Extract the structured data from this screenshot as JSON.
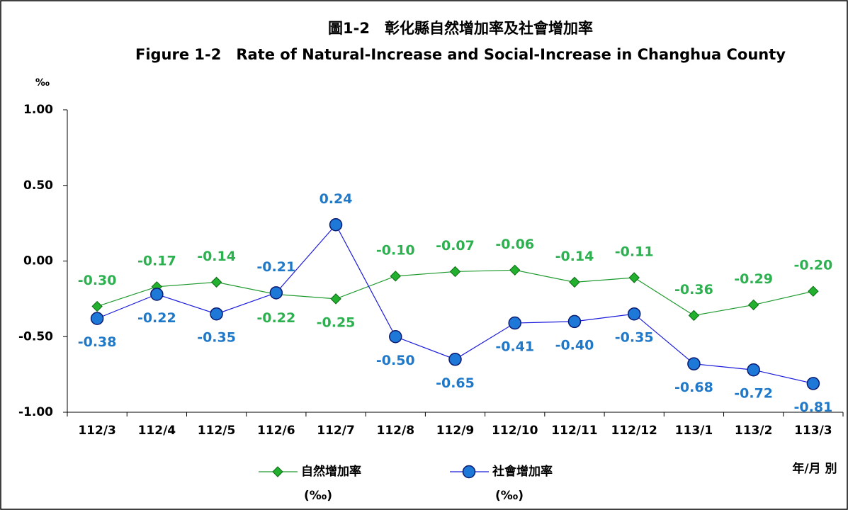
{
  "chart_data": {
    "type": "line",
    "title": "圖1-2　彰化縣自然增加率及社會增加率",
    "subtitle": "Figure 1-2　Rate of Natural-Increase and Social-Increase in Changhua County",
    "y_unit": "‰",
    "x_label": "年/月 別",
    "categories": [
      "112/3",
      "112/4",
      "112/5",
      "112/6",
      "112/7",
      "112/8",
      "112/9",
      "112/10",
      "112/11",
      "112/12",
      "113/1",
      "113/2",
      "113/3"
    ],
    "series": [
      {
        "name": "自然增加率(‰)",
        "color": "#1f9a2e",
        "label_color": "#2db04f",
        "marker": "diamond",
        "values": [
          -0.3,
          -0.17,
          -0.14,
          -0.22,
          -0.25,
          -0.1,
          -0.07,
          -0.06,
          -0.14,
          -0.11,
          -0.36,
          -0.29,
          -0.2
        ],
        "value_labels": [
          "-0.30",
          "-0.17",
          "-0.14",
          "-0.22",
          "-0.25",
          "-0.10",
          "-0.07",
          "-0.06",
          "-0.14",
          "-0.11",
          "-0.36",
          "-0.29",
          "-0.20"
        ]
      },
      {
        "name": "社會增加率(‰)",
        "color": "#1a1adc",
        "label_color": "#1f78c8",
        "marker": "circle",
        "values": [
          -0.38,
          -0.22,
          -0.35,
          -0.21,
          0.24,
          -0.5,
          -0.65,
          -0.41,
          -0.4,
          -0.35,
          -0.68,
          -0.72,
          -0.81
        ],
        "value_labels": [
          "-0.38",
          "-0.22",
          "-0.35",
          "-0.21",
          "0.24",
          "-0.50",
          "-0.65",
          "-0.41",
          "-0.40",
          "-0.35",
          "-0.68",
          "-0.72",
          "-0.81"
        ]
      }
    ],
    "ylim": [
      -1,
      1
    ],
    "yticks": [
      {
        "value": -1,
        "label": "-1.00"
      },
      {
        "value": -0.5,
        "label": "-0.50"
      },
      {
        "value": 0,
        "label": "0.00"
      },
      {
        "value": 0.5,
        "label": "0.50"
      },
      {
        "value": 1,
        "label": "1.00"
      }
    ],
    "legend": "bottom"
  }
}
